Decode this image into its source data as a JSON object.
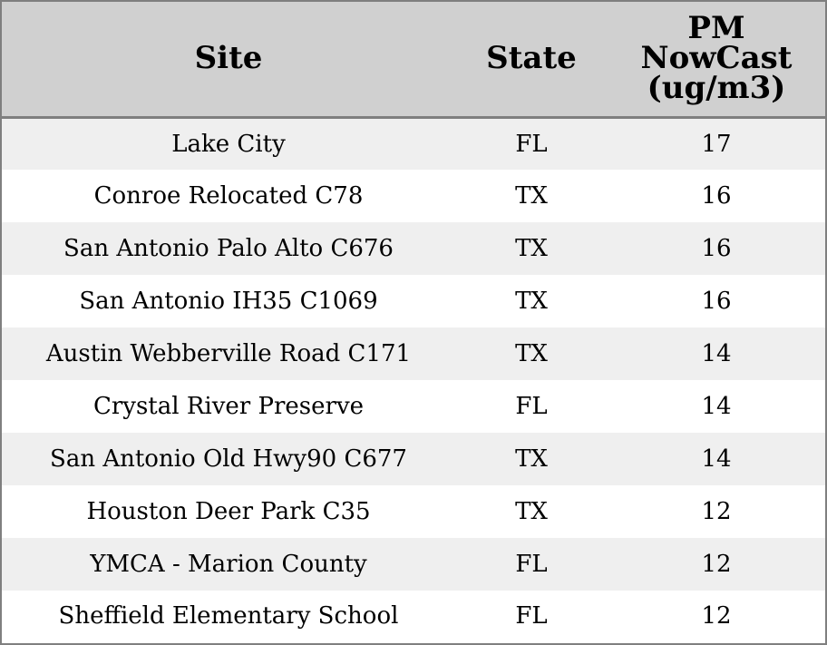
{
  "chart_data": {
    "type": "table",
    "columns": [
      "Site",
      "State",
      "PM NowCast (ug/m3)"
    ],
    "header_lines": {
      "site": [
        "Site"
      ],
      "state": [
        "State"
      ],
      "pm": [
        "PM",
        "NowCast",
        "(ug/m3)"
      ]
    },
    "rows": [
      {
        "site": "Lake City",
        "state": "FL",
        "pm": 17
      },
      {
        "site": "Conroe Relocated C78",
        "state": "TX",
        "pm": 16
      },
      {
        "site": "San Antonio Palo Alto C676",
        "state": "TX",
        "pm": 16
      },
      {
        "site": "San Antonio IH35 C1069",
        "state": "TX",
        "pm": 16
      },
      {
        "site": "Austin Webberville Road C171",
        "state": "TX",
        "pm": 14
      },
      {
        "site": "Crystal River Preserve",
        "state": "FL",
        "pm": 14
      },
      {
        "site": "San Antonio Old Hwy90 C677",
        "state": "TX",
        "pm": 14
      },
      {
        "site": "Houston Deer Park C35",
        "state": "TX",
        "pm": 12
      },
      {
        "site": "YMCA - Marion County",
        "state": "FL",
        "pm": 12
      },
      {
        "site": "Sheffield Elementary School",
        "state": "FL",
        "pm": 12
      }
    ],
    "colors": {
      "header_bg": "#d0d0d0",
      "odd_row_bg": "#efefef",
      "even_row_bg": "#ffffff",
      "border": "#7f7f7f"
    }
  }
}
